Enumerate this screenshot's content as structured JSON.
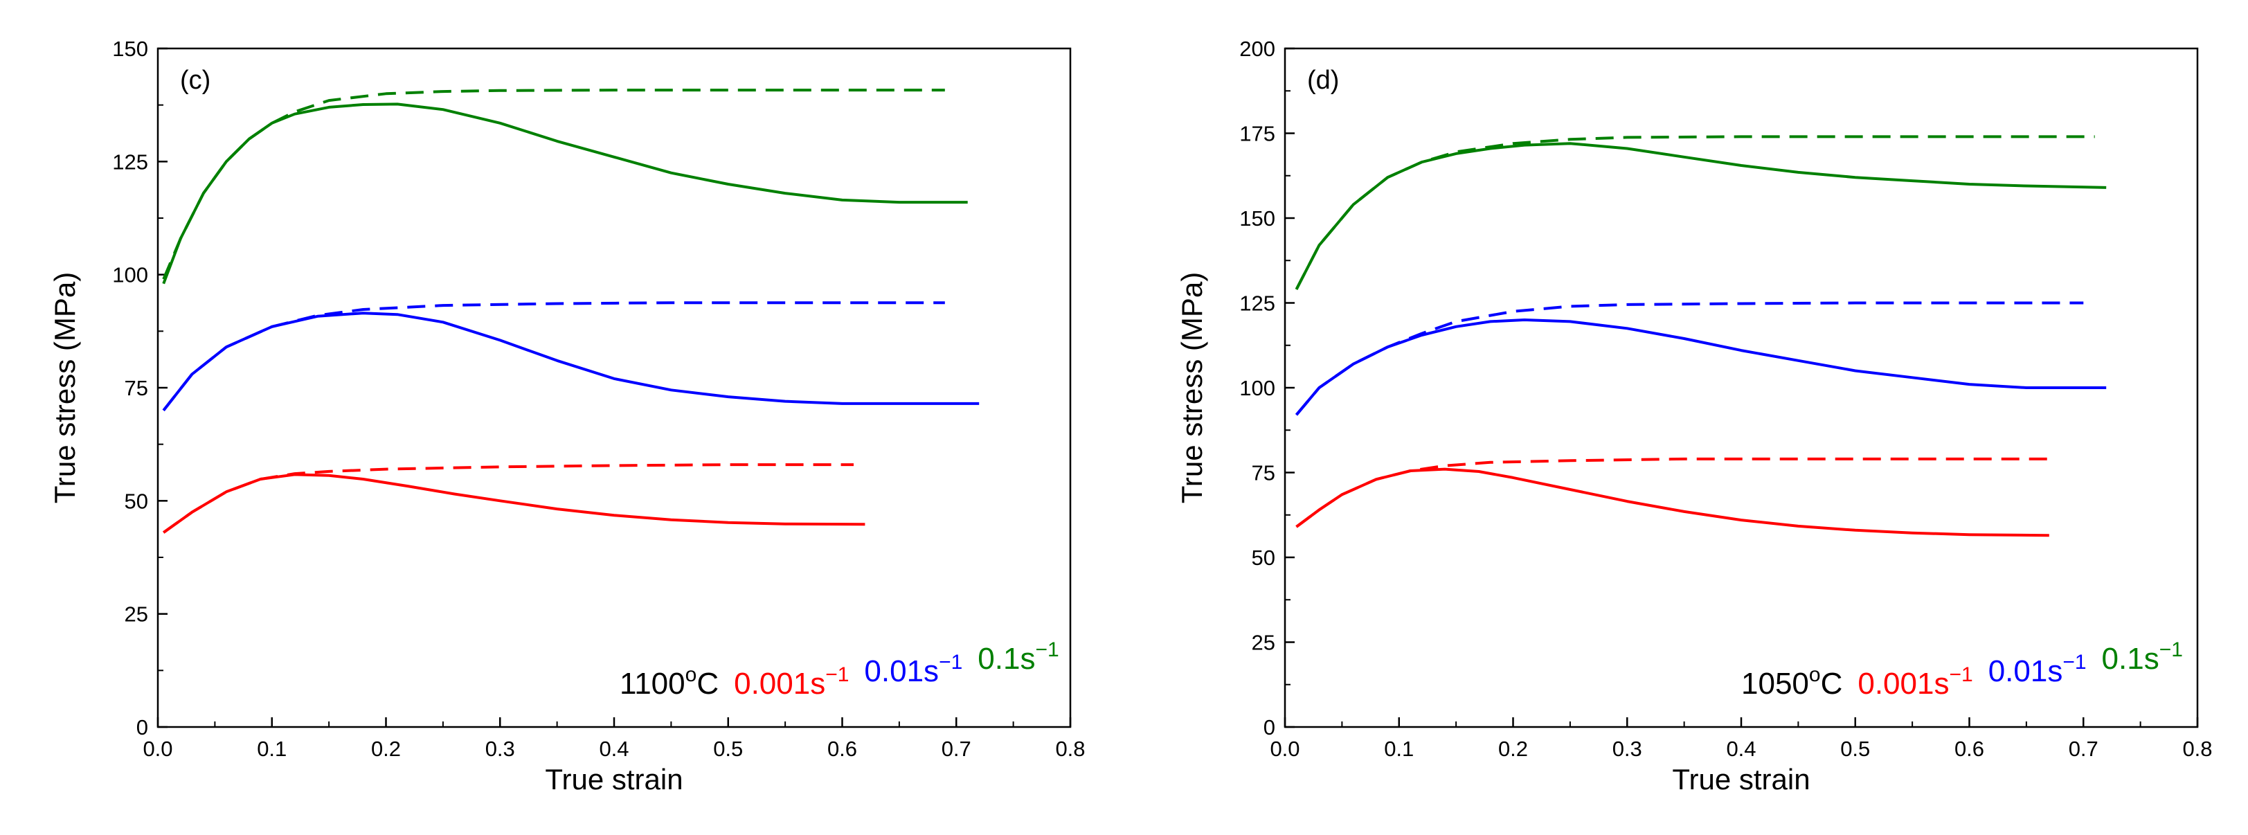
{
  "chart_data": [
    {
      "type": "line",
      "panel_label": "(c)",
      "xlabel": "True strain",
      "ylabel": "True stress (MPa)",
      "xlim": [
        0,
        0.8
      ],
      "ylim": [
        0,
        150
      ],
      "xticks": [
        "0.0",
        "0.1",
        "0.2",
        "0.3",
        "0.4",
        "0.5",
        "0.6",
        "0.7",
        "0.8"
      ],
      "yticks": [
        "0",
        "25",
        "50",
        "75",
        "100",
        "125",
        "150"
      ],
      "legend": {
        "position": "bottom-center",
        "temperature": {
          "base": "1100",
          "sup": "o",
          "unit": "C"
        },
        "rates": [
          {
            "base": "0.001s",
            "sup": "−1",
            "color": "#ff0000"
          },
          {
            "base": "0.01s",
            "sup": "−1",
            "color": "#0000ff"
          },
          {
            "base": "0.1s",
            "sup": "−1",
            "color": "#008000"
          }
        ]
      },
      "series": [
        {
          "style": "solid",
          "color": "#008000",
          "x": [
            0.005,
            0.02,
            0.04,
            0.06,
            0.08,
            0.1,
            0.12,
            0.15,
            0.18,
            0.21,
            0.25,
            0.3,
            0.35,
            0.4,
            0.45,
            0.5,
            0.55,
            0.6,
            0.65,
            0.71
          ],
          "y": [
            98,
            108,
            118,
            125,
            130,
            133.5,
            135.5,
            137,
            137.6,
            137.7,
            136.5,
            133.5,
            129.5,
            126,
            122.5,
            120,
            118,
            116.5,
            116,
            116
          ]
        },
        {
          "style": "dashed",
          "color": "#008000",
          "x": [
            0.005,
            0.02,
            0.04,
            0.06,
            0.08,
            0.1,
            0.12,
            0.15,
            0.2,
            0.25,
            0.3,
            0.4,
            0.5,
            0.6,
            0.69
          ],
          "y": [
            99,
            108,
            118,
            125,
            130,
            133.5,
            136,
            138.5,
            140,
            140.5,
            140.7,
            140.8,
            140.8,
            140.8,
            140.8
          ]
        },
        {
          "style": "solid",
          "color": "#0000ff",
          "x": [
            0.005,
            0.03,
            0.06,
            0.1,
            0.14,
            0.18,
            0.21,
            0.25,
            0.3,
            0.35,
            0.4,
            0.45,
            0.5,
            0.55,
            0.6,
            0.65,
            0.72
          ],
          "y": [
            70,
            78,
            84,
            88.5,
            90.8,
            91.5,
            91.2,
            89.5,
            85.5,
            81,
            77,
            74.5,
            73,
            72,
            71.5,
            71.5,
            71.5
          ]
        },
        {
          "style": "dashed",
          "color": "#0000ff",
          "x": [
            0.005,
            0.03,
            0.06,
            0.1,
            0.14,
            0.18,
            0.25,
            0.35,
            0.45,
            0.55,
            0.69
          ],
          "y": [
            70,
            78,
            84,
            88.5,
            91,
            92.3,
            93.2,
            93.6,
            93.8,
            93.8,
            93.8
          ]
        },
        {
          "style": "solid",
          "color": "#ff0000",
          "x": [
            0.005,
            0.03,
            0.06,
            0.09,
            0.12,
            0.15,
            0.18,
            0.22,
            0.26,
            0.3,
            0.35,
            0.4,
            0.45,
            0.5,
            0.55,
            0.62
          ],
          "y": [
            43,
            47.5,
            52,
            54.8,
            55.8,
            55.6,
            54.8,
            53.2,
            51.5,
            50,
            48.2,
            46.8,
            45.8,
            45.2,
            44.9,
            44.8
          ]
        },
        {
          "style": "dashed",
          "color": "#ff0000",
          "x": [
            0.005,
            0.03,
            0.06,
            0.09,
            0.12,
            0.15,
            0.2,
            0.3,
            0.4,
            0.5,
            0.61
          ],
          "y": [
            43,
            47.5,
            52,
            54.8,
            56,
            56.5,
            57,
            57.5,
            57.8,
            58,
            58
          ]
        }
      ]
    },
    {
      "type": "line",
      "panel_label": "(d)",
      "xlabel": "True strain",
      "ylabel": "True stress (MPa)",
      "xlim": [
        0,
        0.8
      ],
      "ylim": [
        0,
        200
      ],
      "xticks": [
        "0.0",
        "0.1",
        "0.2",
        "0.3",
        "0.4",
        "0.5",
        "0.6",
        "0.7",
        "0.8"
      ],
      "yticks": [
        "0",
        "25",
        "50",
        "75",
        "100",
        "125",
        "150",
        "175",
        "200"
      ],
      "legend": {
        "position": "bottom-center",
        "temperature": {
          "base": "1050",
          "sup": "o",
          "unit": "C"
        },
        "rates": [
          {
            "base": "0.001s",
            "sup": "−1",
            "color": "#ff0000"
          },
          {
            "base": "0.01s",
            "sup": "−1",
            "color": "#0000ff"
          },
          {
            "base": "0.1s",
            "sup": "−1",
            "color": "#008000"
          }
        ]
      },
      "series": [
        {
          "style": "solid",
          "color": "#008000",
          "x": [
            0.01,
            0.03,
            0.06,
            0.09,
            0.12,
            0.15,
            0.18,
            0.21,
            0.25,
            0.3,
            0.35,
            0.4,
            0.45,
            0.5,
            0.55,
            0.6,
            0.65,
            0.72
          ],
          "y": [
            129,
            142,
            154,
            162,
            166.5,
            169,
            170.5,
            171.5,
            172,
            170.5,
            168,
            165.5,
            163.5,
            162,
            161,
            160,
            159.5,
            159
          ]
        },
        {
          "style": "dashed",
          "color": "#008000",
          "x": [
            0.01,
            0.03,
            0.06,
            0.09,
            0.12,
            0.15,
            0.2,
            0.25,
            0.3,
            0.4,
            0.5,
            0.6,
            0.71
          ],
          "y": [
            129,
            142,
            154,
            162,
            166.5,
            169.5,
            172,
            173.2,
            173.8,
            174,
            174,
            174,
            174
          ]
        },
        {
          "style": "solid",
          "color": "#0000ff",
          "x": [
            0.01,
            0.03,
            0.06,
            0.09,
            0.12,
            0.15,
            0.18,
            0.21,
            0.25,
            0.3,
            0.35,
            0.4,
            0.45,
            0.5,
            0.55,
            0.6,
            0.65,
            0.72
          ],
          "y": [
            92,
            100,
            107,
            112,
            115.5,
            118,
            119.5,
            120,
            119.5,
            117.5,
            114.5,
            111,
            108,
            105,
            103,
            101,
            100,
            100
          ]
        },
        {
          "style": "dashed",
          "color": "#0000ff",
          "x": [
            0.01,
            0.03,
            0.06,
            0.09,
            0.12,
            0.15,
            0.2,
            0.25,
            0.3,
            0.4,
            0.5,
            0.6,
            0.7
          ],
          "y": [
            92,
            100,
            107,
            112,
            116,
            119.5,
            122.5,
            124,
            124.5,
            124.8,
            125,
            125,
            125
          ]
        },
        {
          "style": "solid",
          "color": "#ff0000",
          "x": [
            0.01,
            0.03,
            0.05,
            0.08,
            0.11,
            0.14,
            0.17,
            0.2,
            0.25,
            0.3,
            0.35,
            0.4,
            0.45,
            0.5,
            0.55,
            0.6,
            0.67
          ],
          "y": [
            59,
            64,
            68.5,
            73,
            75.5,
            76,
            75.3,
            73.5,
            70,
            66.5,
            63.5,
            61,
            59.2,
            58,
            57.2,
            56.7,
            56.5
          ]
        },
        {
          "style": "dashed",
          "color": "#ff0000",
          "x": [
            0.01,
            0.03,
            0.05,
            0.08,
            0.11,
            0.14,
            0.18,
            0.25,
            0.35,
            0.5,
            0.67
          ],
          "y": [
            59,
            64,
            68.5,
            73,
            75.5,
            77,
            78,
            78.5,
            79,
            79,
            79
          ]
        }
      ]
    }
  ]
}
